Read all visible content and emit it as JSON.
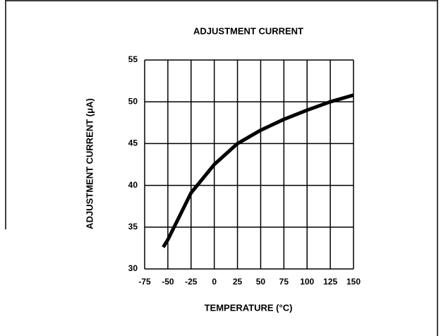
{
  "chart_data": {
    "type": "line",
    "title": "ADJUSTMENT CURRENT",
    "x_label": "TEMPERATURE (°C)",
    "y_label": "ADJUSTMENT CURRENT (μA)",
    "x": [
      -55,
      -50,
      -25,
      0,
      25,
      50,
      75,
      100,
      125,
      150
    ],
    "series": [
      {
        "name": "Adjustment current",
        "color": "#000000",
        "values": [
          32.6,
          33.5,
          39.1,
          42.5,
          45,
          46.6,
          47.9,
          49,
          50,
          50.8
        ]
      }
    ],
    "xlim": [
      -75,
      150
    ],
    "xticks": [
      -75,
      -50,
      -25,
      0,
      25,
      50,
      75,
      100,
      125,
      150
    ],
    "ylim": [
      30,
      55
    ],
    "yticks": [
      30,
      35,
      40,
      45,
      50,
      55
    ],
    "grid": true
  }
}
